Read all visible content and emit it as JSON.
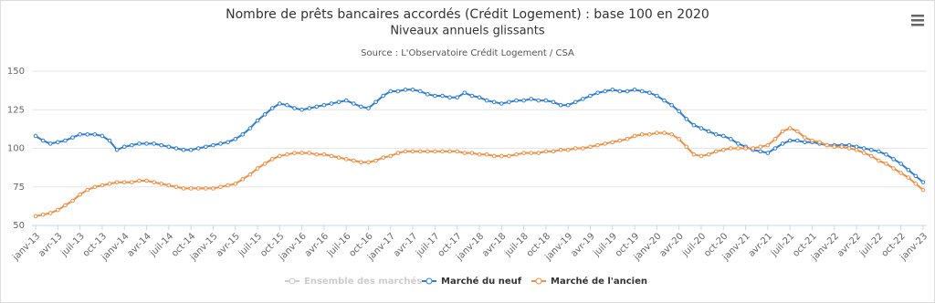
{
  "chart_data": {
    "type": "line",
    "title": "Nombre de prêts bancaires accordés (Crédit Logement) : base 100 en 2020",
    "subtitle": "Niveaux annuels glissants",
    "source": "Source : L'Observatoire Crédit Logement / CSA",
    "categories": [
      "janv-13",
      null,
      null,
      "avr-13",
      null,
      null,
      "juil-13",
      null,
      null,
      "oct-13",
      null,
      null,
      "janv-14",
      null,
      null,
      "avr-14",
      null,
      null,
      "juil-14",
      null,
      null,
      "oct-14",
      null,
      null,
      "janv-15",
      null,
      null,
      "avr-15",
      null,
      null,
      "juil-15",
      null,
      null,
      "oct-15",
      null,
      null,
      "janv-16",
      null,
      null,
      "avr-16",
      null,
      null,
      "juil-16",
      null,
      null,
      "oct-16",
      null,
      null,
      "janv-17",
      null,
      null,
      "avr-17",
      null,
      null,
      "juil-17",
      null,
      null,
      "oct-17",
      null,
      null,
      "janv-18",
      null,
      null,
      "avr-18",
      null,
      null,
      "juil-18",
      null,
      null,
      "oct-18",
      null,
      null,
      "janv-19",
      null,
      null,
      "avr-19",
      null,
      null,
      "juil-19",
      null,
      null,
      "oct-19",
      null,
      null,
      "janv-20",
      null,
      null,
      "avr-20",
      null,
      null,
      "juil-20",
      null,
      null,
      "oct-20",
      null,
      null,
      "janv-21",
      null,
      null,
      "avr-21",
      null,
      null,
      "juil-21",
      null,
      null,
      "oct-21",
      null,
      null,
      "janv-22",
      null,
      null,
      "avr-22",
      null,
      null,
      "juil-22",
      null,
      null,
      "oct-22",
      null,
      null,
      "janv-23"
    ],
    "series": [
      {
        "name": "Ensemble des marchés",
        "color": "#cccccc",
        "visible": false
      },
      {
        "name": "Marché du neuf",
        "color": "#2f7ed8",
        "visible": true,
        "values": [
          108,
          105,
          103,
          104,
          105,
          107,
          109,
          109,
          109,
          108,
          105,
          99,
          101,
          102,
          103,
          103,
          103,
          102,
          101,
          100,
          99,
          99,
          100,
          101,
          102,
          103,
          104,
          106,
          109,
          113,
          118,
          122,
          126,
          129,
          128,
          126,
          125,
          126,
          127,
          128,
          129,
          130,
          131,
          129,
          127,
          126,
          130,
          134,
          137,
          137,
          138,
          138,
          137,
          135,
          134,
          134,
          133,
          133,
          136,
          134,
          133,
          131,
          130,
          129,
          130,
          131,
          131,
          132,
          131,
          131,
          130,
          128,
          128,
          130,
          132,
          134,
          136,
          137,
          138,
          137,
          137,
          138,
          137,
          136,
          134,
          131,
          128,
          124,
          119,
          115,
          113,
          111,
          109,
          108,
          106,
          103,
          101,
          99,
          98,
          97,
          100,
          103,
          105,
          105,
          104,
          104,
          103,
          102,
          102,
          102,
          102,
          101,
          100,
          99,
          98,
          96,
          93,
          90,
          86,
          82,
          78
        ]
      },
      {
        "name": "Marché de l'ancien",
        "color": "#f28f43",
        "visible": true,
        "values": [
          56,
          57,
          58,
          60,
          63,
          66,
          70,
          73,
          75,
          76,
          77,
          78,
          78,
          78,
          79,
          79,
          78,
          77,
          76,
          75,
          74,
          74,
          74,
          74,
          74,
          75,
          76,
          77,
          80,
          83,
          87,
          90,
          93,
          95,
          96,
          97,
          97,
          97,
          96,
          96,
          95,
          94,
          93,
          92,
          91,
          91,
          92,
          94,
          95,
          97,
          98,
          98,
          98,
          98,
          98,
          98,
          98,
          98,
          97,
          97,
          96,
          96,
          95,
          95,
          95,
          96,
          97,
          97,
          97,
          98,
          98,
          99,
          99,
          100,
          100,
          101,
          102,
          103,
          104,
          105,
          106,
          108,
          109,
          109,
          110,
          110,
          109,
          106,
          101,
          96,
          95,
          96,
          98,
          99,
          100,
          100,
          100,
          100,
          101,
          102,
          106,
          111,
          113,
          111,
          107,
          105,
          104,
          102,
          101,
          101,
          100,
          99,
          97,
          95,
          92,
          90,
          87,
          84,
          81,
          77,
          73
        ]
      }
    ],
    "ylim": [
      50,
      150
    ],
    "yticks": [
      50,
      75,
      100,
      125,
      150
    ],
    "grid": true,
    "legend": "bottom"
  }
}
